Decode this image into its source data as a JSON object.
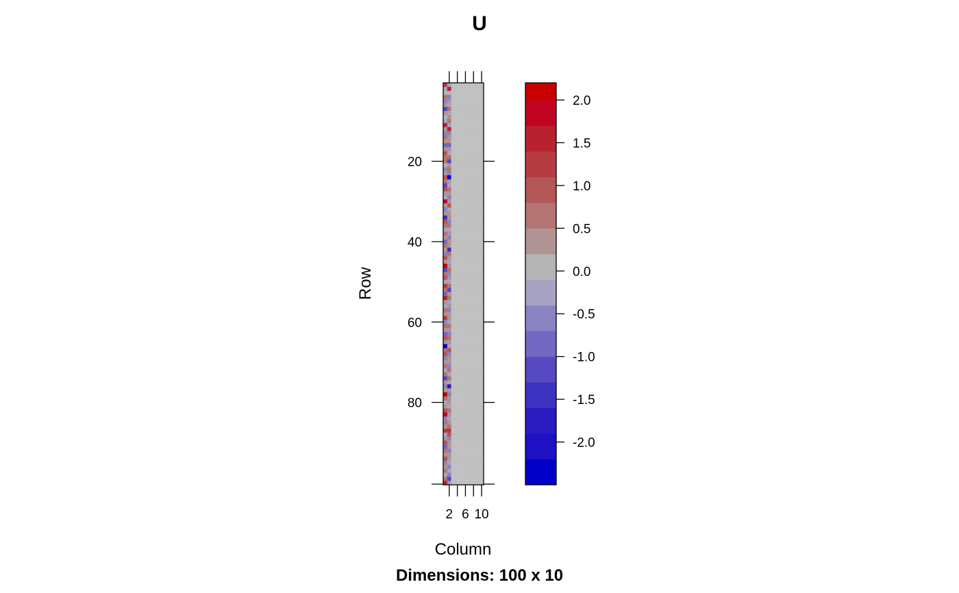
{
  "chart_data": {
    "type": "heatmap",
    "title": "U",
    "xlabel": "Column",
    "ylabel": "Row",
    "sublabel": "Dimensions: 100 x 10",
    "rows": 100,
    "cols": 10,
    "x_ticks": [
      2,
      6,
      10
    ],
    "y_ticks": [
      20,
      40,
      60,
      80
    ],
    "color_range": [
      -2.5,
      2.2
    ],
    "colorbar_ticks": [
      "2.0",
      "1.5",
      "1.0",
      "0.5",
      "0.0",
      "-0.5",
      "-1.0",
      "-1.5",
      "-2.0"
    ],
    "colorbar_levels": [
      {
        "from": -2.5,
        "to": -2.2,
        "color": "#0000c8"
      },
      {
        "from": -2.2,
        "to": -1.9,
        "color": "#1e10c3"
      },
      {
        "from": -1.9,
        "to": -1.6,
        "color": "#2a1cc0"
      },
      {
        "from": -1.6,
        "to": -1.3,
        "color": "#3c32c0"
      },
      {
        "from": -1.3,
        "to": -1.0,
        "color": "#5648c0"
      },
      {
        "from": -1.0,
        "to": -0.7,
        "color": "#7268c2"
      },
      {
        "from": -0.7,
        "to": -0.4,
        "color": "#8a84c2"
      },
      {
        "from": -0.4,
        "to": -0.1,
        "color": "#a6a4c2"
      },
      {
        "from": -0.1,
        "to": 0.2,
        "color": "#b4b4b4"
      },
      {
        "from": 0.2,
        "to": 0.5,
        "color": "#b09494"
      },
      {
        "from": 0.5,
        "to": 0.8,
        "color": "#b47474"
      },
      {
        "from": 0.8,
        "to": 1.1,
        "color": "#b45656"
      },
      {
        "from": 1.1,
        "to": 1.4,
        "color": "#b63c44"
      },
      {
        "from": 1.4,
        "to": 1.7,
        "color": "#b82230"
      },
      {
        "from": 1.7,
        "to": 2.0,
        "color": "#c00422"
      },
      {
        "from": 2.0,
        "to": 2.2,
        "color": "#c80000"
      }
    ],
    "column_1_values": [
      1.2,
      -0.3,
      0.1,
      0.5,
      -0.6,
      0.2,
      -1.1,
      0.3,
      0.1,
      -0.2,
      1.5,
      0.4,
      -0.5,
      0.6,
      0.2,
      -0.8,
      0.3,
      0.9,
      0.5,
      0.7,
      0.1,
      -0.6,
      0.4,
      1.0,
      0.6,
      -1.2,
      0.8,
      0.2,
      -0.4,
      1.8,
      0.3,
      -0.7,
      0.4,
      -1.6,
      0.9,
      0.5,
      -0.2,
      0.6,
      0.3,
      -0.9,
      0.7,
      0.2,
      -0.5,
      1.0,
      0.4,
      2.0,
      -1.1,
      0.5,
      0.8,
      -0.3,
      1.3,
      0.6,
      -0.8,
      1.6,
      0.2,
      -0.4,
      0.7,
      0.3,
      1.1,
      -0.6,
      0.5,
      0.2,
      -0.9,
      0.8,
      0.4,
      -2.3,
      0.6,
      1.0,
      -0.5,
      0.3,
      0.7,
      -0.2,
      0.5,
      -1.3,
      0.4,
      -0.7,
      0.2,
      2.1,
      0.6,
      -0.4,
      0.3,
      0.9,
      1.7,
      -0.6,
      0.5,
      0.2,
      1.2,
      -0.3,
      0.4,
      0.8,
      -1.0,
      0.6,
      0.3,
      0.9,
      -0.5,
      0.2,
      0.7,
      -0.3,
      0.5,
      1.4
    ],
    "column_2_values": [
      -0.2,
      1.6,
      0.1,
      -0.5,
      0.3,
      -0.2,
      0.6,
      -0.4,
      0.2,
      0.5,
      -0.3,
      1.5,
      -0.6,
      0.2,
      0.4,
      -0.9,
      0.3,
      -0.2,
      0.6,
      -1.2,
      0.2,
      0.5,
      -0.7,
      -2.3,
      0.4,
      -0.3,
      0.6,
      0.2,
      -0.6,
      0.3,
      0.8,
      -0.4,
      0.3,
      0.2,
      -0.5,
      0.6,
      -0.3,
      0.2,
      -0.6,
      0.4,
      0.3,
      -1.4,
      0.5,
      0.2,
      -0.4,
      0.3,
      0.6,
      -0.5,
      0.2,
      -0.3,
      0.5,
      -1.3,
      0.4,
      0.7,
      -0.3,
      0.3,
      -0.6,
      0.4,
      0.2,
      -0.4,
      0.5,
      0.3,
      -0.5,
      0.6,
      0.2,
      -0.3,
      0.8,
      -0.6,
      0.4,
      0.2,
      -0.7,
      0.5,
      -0.4,
      0.6,
      -0.2,
      -1.9,
      0.3,
      -0.5,
      0.2,
      0.4,
      -0.3,
      0.6,
      0.3,
      -0.4,
      0.2,
      0.5,
      1.3,
      1.0,
      -0.5,
      0.4,
      0.3,
      -0.6,
      0.2,
      0.4,
      -0.3,
      -0.5,
      -0.4,
      -0.6,
      -1.2,
      0.3
    ],
    "remaining_columns_value": 0.0
  }
}
